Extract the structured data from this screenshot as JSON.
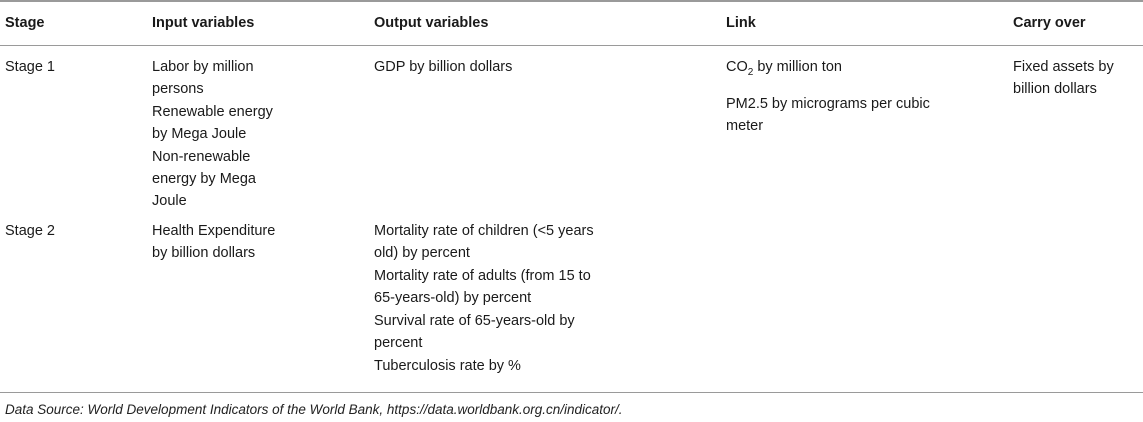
{
  "headers": {
    "stage": "Stage",
    "input": "Input variables",
    "output": "Output variables",
    "link": "Link",
    "carry": "Carry over"
  },
  "rows": [
    {
      "stage": "Stage 1",
      "input": [
        "Labor by million persons",
        "Renewable energy by Mega Joule",
        "Non-renewable energy by Mega Joule"
      ],
      "output": [
        "GDP by billion dollars"
      ],
      "link": [
        {
          "pre": "CO",
          "sub": "2",
          "post": " by million ton"
        },
        {
          "pre": "PM2.5 by micrograms per cubic meter",
          "sub": "",
          "post": ""
        }
      ],
      "carry": [
        "Fixed assets by billion dollars"
      ]
    },
    {
      "stage": "Stage 2",
      "input": [
        "Health Expenditure by billion dollars"
      ],
      "output": [
        "Mortality rate of children (<5 years old) by percent",
        "Mortality rate of adults (from 15 to 65-years-old) by percent",
        "Survival rate of 65-years-old by percent",
        "Tuberculosis rate by %"
      ],
      "link": [],
      "carry": []
    }
  ],
  "footnote": "Data Source: World Development Indicators of the World Bank, https://data.worldbank.org.cn/indicator/."
}
